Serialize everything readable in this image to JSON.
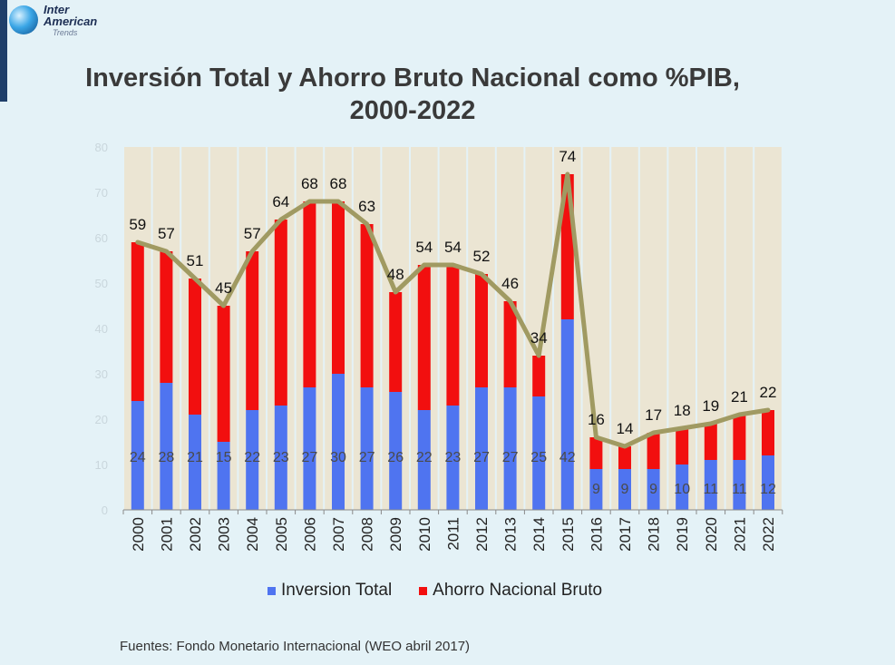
{
  "logo": {
    "line1": "Inter",
    "line2": "American",
    "line3": "Trends"
  },
  "colors": {
    "inversion": "#4f74f0",
    "ahorro": "#f20f0f",
    "line": "#a09a62",
    "background_bar": "#ebe5d3"
  },
  "chart_data": {
    "type": "bar",
    "title_lines": [
      "Inversión Total y Ahorro Bruto Nacional como %PIB,",
      "2000-2022"
    ],
    "categories": [
      "2000",
      "2001",
      "2002",
      "2003",
      "2004",
      "2005",
      "2006",
      "2007",
      "2008",
      "2009",
      "2010",
      "2011",
      "2012",
      "2013",
      "2014",
      "2015",
      "2016",
      "2017",
      "2018",
      "2019",
      "2020",
      "2021",
      "2022"
    ],
    "series": [
      {
        "name": "Inversion Total",
        "values": [
          24,
          28,
          21,
          15,
          22,
          23,
          27,
          30,
          27,
          26,
          22,
          23,
          27,
          27,
          25,
          42,
          9,
          9,
          9,
          10,
          11,
          11,
          12
        ]
      },
      {
        "name": "Ahorro Nacional Bruto",
        "values": [
          35,
          29,
          30,
          30,
          35,
          41,
          41,
          38,
          36,
          22,
          32,
          31,
          25,
          19,
          9,
          32,
          7,
          5,
          8,
          8,
          8,
          10,
          10
        ]
      }
    ],
    "totals": [
      59,
      57,
      51,
      45,
      57,
      64,
      68,
      68,
      63,
      48,
      54,
      54,
      52,
      46,
      34,
      74,
      16,
      14,
      17,
      18,
      19,
      21,
      22
    ],
    "ylim": [
      0,
      80
    ],
    "yticks": [
      "0",
      "10",
      "20",
      "30",
      "40",
      "50",
      "60",
      "70",
      "80"
    ],
    "legend_position": "bottom"
  },
  "footer": "Fuentes: Fondo Monetario Internacional (WEO abril 2017)"
}
